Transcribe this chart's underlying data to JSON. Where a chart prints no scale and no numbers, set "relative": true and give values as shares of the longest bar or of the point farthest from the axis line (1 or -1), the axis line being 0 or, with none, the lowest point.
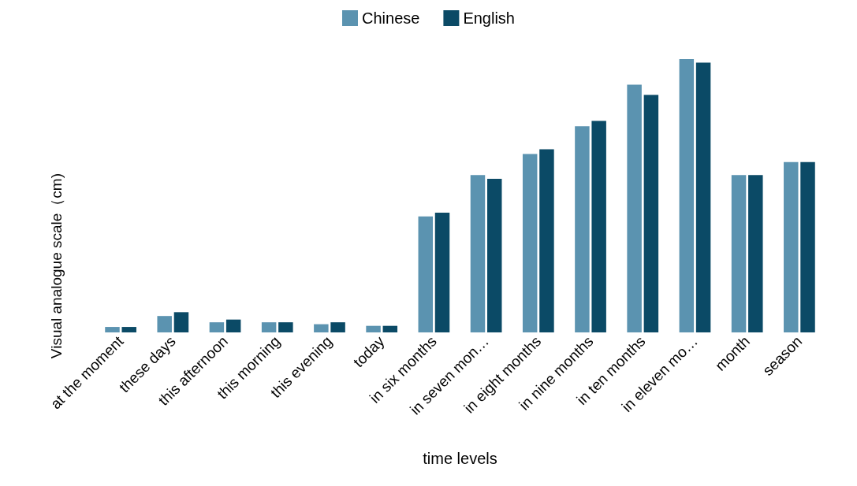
{
  "chart_data": {
    "type": "bar",
    "xlabel": "time levels",
    "ylabel": "Visual analogue scale（cm)",
    "relative": true,
    "legend": "top",
    "categories": [
      "at the moment",
      "these days",
      "this afternoon",
      "this morning",
      "this evening",
      "today",
      "in six months",
      "in seven mon…",
      "in eight months",
      "in nine months",
      "in ten months",
      "in eleven mo…",
      "month",
      "season"
    ],
    "series": [
      {
        "name": "Chinese",
        "color": "#5b93b0",
        "values": [
          0.02,
          0.06,
          0.037,
          0.037,
          0.03,
          0.024,
          0.424,
          0.576,
          0.653,
          0.754,
          0.906,
          1,
          0.576,
          0.623
        ]
      },
      {
        "name": "English",
        "color": "#0b4a66",
        "values": [
          0.02,
          0.074,
          0.047,
          0.037,
          0.037,
          0.024,
          0.438,
          0.562,
          0.67,
          0.774,
          0.869,
          0.987,
          0.576,
          0.623
        ]
      }
    ]
  }
}
